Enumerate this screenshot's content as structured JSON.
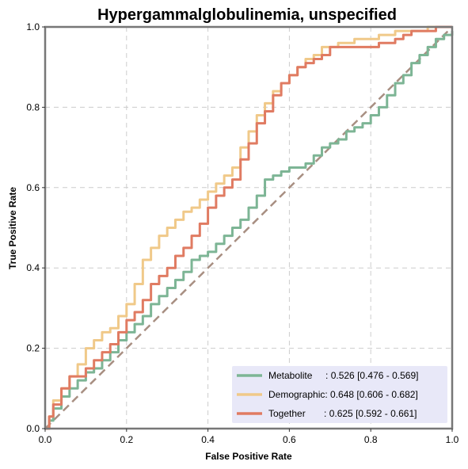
{
  "chart_data": {
    "type": "line",
    "title": "Hypergammalglobulinemia, unspecified",
    "xlabel": "False Positive Rate",
    "ylabel": "True Positive Rate",
    "xlim": [
      0,
      1
    ],
    "ylim": [
      0,
      1
    ],
    "x_ticks": [
      "0.0",
      "0.2",
      "0.4",
      "0.6",
      "0.8",
      "1.0"
    ],
    "y_ticks": [
      "0.0",
      "0.2",
      "0.4",
      "0.6",
      "0.8",
      "1.0"
    ],
    "grid": true,
    "legend_position": "bottom-right",
    "diagonal_color": "#a88f82",
    "legend_background": "#e8e8f8",
    "series": [
      {
        "name": "Metabolite",
        "legend_text": "Metabolite     : 0.526 [0.476 - 0.569]",
        "color": "#7db595",
        "x": [
          0,
          0.01,
          0.02,
          0.04,
          0.06,
          0.08,
          0.1,
          0.12,
          0.14,
          0.16,
          0.18,
          0.2,
          0.22,
          0.24,
          0.26,
          0.28,
          0.3,
          0.32,
          0.34,
          0.36,
          0.38,
          0.4,
          0.42,
          0.44,
          0.46,
          0.48,
          0.5,
          0.52,
          0.54,
          0.56,
          0.58,
          0.6,
          0.62,
          0.64,
          0.66,
          0.68,
          0.7,
          0.72,
          0.74,
          0.76,
          0.78,
          0.8,
          0.82,
          0.84,
          0.86,
          0.88,
          0.9,
          0.92,
          0.94,
          0.96,
          0.98,
          1.0
        ],
        "y": [
          0,
          0.02,
          0.05,
          0.08,
          0.1,
          0.12,
          0.14,
          0.15,
          0.17,
          0.19,
          0.22,
          0.24,
          0.26,
          0.28,
          0.31,
          0.33,
          0.35,
          0.37,
          0.39,
          0.42,
          0.43,
          0.44,
          0.46,
          0.48,
          0.5,
          0.52,
          0.55,
          0.58,
          0.62,
          0.63,
          0.64,
          0.65,
          0.65,
          0.66,
          0.68,
          0.7,
          0.71,
          0.72,
          0.74,
          0.75,
          0.76,
          0.78,
          0.8,
          0.83,
          0.86,
          0.88,
          0.91,
          0.93,
          0.95,
          0.97,
          0.98,
          0.99
        ]
      },
      {
        "name": "Demographic",
        "legend_text": "Demographic: 0.648 [0.606 - 0.682]",
        "color": "#f0c989",
        "x": [
          0,
          0.01,
          0.02,
          0.04,
          0.06,
          0.08,
          0.1,
          0.12,
          0.14,
          0.16,
          0.18,
          0.2,
          0.22,
          0.24,
          0.26,
          0.28,
          0.3,
          0.32,
          0.34,
          0.36,
          0.38,
          0.4,
          0.42,
          0.44,
          0.46,
          0.48,
          0.5,
          0.52,
          0.54,
          0.56,
          0.58,
          0.6,
          0.62,
          0.64,
          0.66,
          0.68,
          0.7,
          0.72,
          0.74,
          0.76,
          0.78,
          0.8,
          0.82,
          0.84,
          0.86,
          0.88,
          0.9,
          0.92,
          0.94,
          0.96,
          0.98,
          1.0
        ],
        "y": [
          0,
          0.03,
          0.07,
          0.1,
          0.13,
          0.16,
          0.2,
          0.22,
          0.24,
          0.25,
          0.28,
          0.31,
          0.36,
          0.42,
          0.45,
          0.48,
          0.5,
          0.52,
          0.54,
          0.55,
          0.57,
          0.59,
          0.61,
          0.63,
          0.65,
          0.7,
          0.74,
          0.78,
          0.81,
          0.84,
          0.86,
          0.88,
          0.9,
          0.92,
          0.93,
          0.95,
          0.95,
          0.96,
          0.96,
          0.97,
          0.97,
          0.97,
          0.98,
          0.98,
          0.99,
          0.99,
          0.99,
          0.99,
          1.0,
          1.0,
          1.0,
          1.0
        ]
      },
      {
        "name": "Together",
        "legend_text": "Together       : 0.625 [0.592 - 0.661]",
        "color": "#e07b62",
        "x": [
          0,
          0.01,
          0.02,
          0.04,
          0.06,
          0.08,
          0.1,
          0.12,
          0.14,
          0.16,
          0.18,
          0.2,
          0.22,
          0.24,
          0.26,
          0.28,
          0.3,
          0.32,
          0.34,
          0.36,
          0.38,
          0.4,
          0.42,
          0.44,
          0.46,
          0.48,
          0.5,
          0.52,
          0.54,
          0.56,
          0.58,
          0.6,
          0.62,
          0.64,
          0.66,
          0.68,
          0.7,
          0.72,
          0.74,
          0.76,
          0.78,
          0.8,
          0.82,
          0.84,
          0.86,
          0.88,
          0.9,
          0.92,
          0.94,
          0.96,
          0.98,
          1.0
        ],
        "y": [
          0,
          0.03,
          0.06,
          0.1,
          0.13,
          0.13,
          0.15,
          0.17,
          0.19,
          0.21,
          0.24,
          0.27,
          0.29,
          0.32,
          0.36,
          0.38,
          0.4,
          0.43,
          0.45,
          0.48,
          0.51,
          0.55,
          0.58,
          0.6,
          0.62,
          0.67,
          0.71,
          0.76,
          0.79,
          0.83,
          0.86,
          0.88,
          0.9,
          0.91,
          0.92,
          0.93,
          0.95,
          0.95,
          0.95,
          0.95,
          0.95,
          0.95,
          0.96,
          0.96,
          0.97,
          0.98,
          0.99,
          0.99,
          0.99,
          1.0,
          1.0,
          1.0
        ]
      }
    ]
  }
}
